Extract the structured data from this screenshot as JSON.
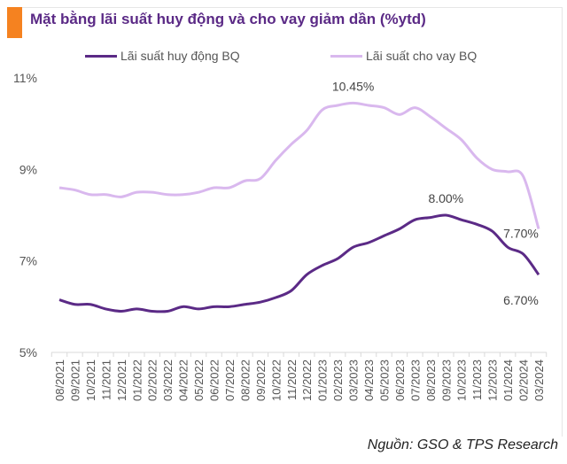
{
  "chart_data": {
    "type": "line",
    "title": "Mặt bằng lãi suất huy động và cho vay giảm dần (%ytd)",
    "categories": [
      "08/2021",
      "09/2021",
      "10/2021",
      "11/2021",
      "12/2021",
      "01/2022",
      "02/2022",
      "03/2022",
      "04/2022",
      "05/2022",
      "06/2022",
      "07/2022",
      "08/2022",
      "09/2022",
      "10/2022",
      "11/2022",
      "12/2022",
      "01/2023",
      "02/2023",
      "03/2023",
      "04/2023",
      "05/2023",
      "06/2023",
      "07/2023",
      "08/2023",
      "09/2023",
      "10/2023",
      "11/2023",
      "12/2023",
      "01/2024",
      "02/2024",
      "03/2024"
    ],
    "series": [
      {
        "name": "Lãi suất huy động BQ",
        "color": "#5b2a86",
        "values": [
          6.15,
          6.05,
          6.05,
          5.95,
          5.9,
          5.95,
          5.9,
          5.9,
          6.0,
          5.95,
          6.0,
          6.0,
          6.05,
          6.1,
          6.2,
          6.35,
          6.7,
          6.9,
          7.05,
          7.3,
          7.4,
          7.55,
          7.7,
          7.9,
          7.95,
          8.0,
          7.9,
          7.8,
          7.65,
          7.3,
          7.15,
          6.7
        ]
      },
      {
        "name": "Lãi suất cho vay BQ",
        "color": "#d9b8ee",
        "values": [
          8.6,
          8.55,
          8.45,
          8.45,
          8.4,
          8.5,
          8.5,
          8.45,
          8.45,
          8.5,
          8.6,
          8.6,
          8.75,
          8.8,
          9.2,
          9.55,
          9.85,
          10.3,
          10.4,
          10.45,
          10.4,
          10.35,
          10.2,
          10.35,
          10.15,
          9.9,
          9.65,
          9.25,
          9.0,
          8.95,
          8.85,
          7.7
        ]
      }
    ],
    "annotations": [
      {
        "series": 1,
        "index": 19,
        "text": "10.45%"
      },
      {
        "series": 0,
        "index": 25,
        "text": "8.00%"
      },
      {
        "series": 1,
        "index": 31,
        "text": "7.70%"
      },
      {
        "series": 0,
        "index": 31,
        "text": "6.70%"
      }
    ],
    "yticks": [
      "5%",
      "7%",
      "9%",
      "11%"
    ],
    "ylim": [
      5,
      11
    ],
    "grid": false,
    "legend": "top",
    "source": "Nguồn: GSO & TPS Research"
  }
}
